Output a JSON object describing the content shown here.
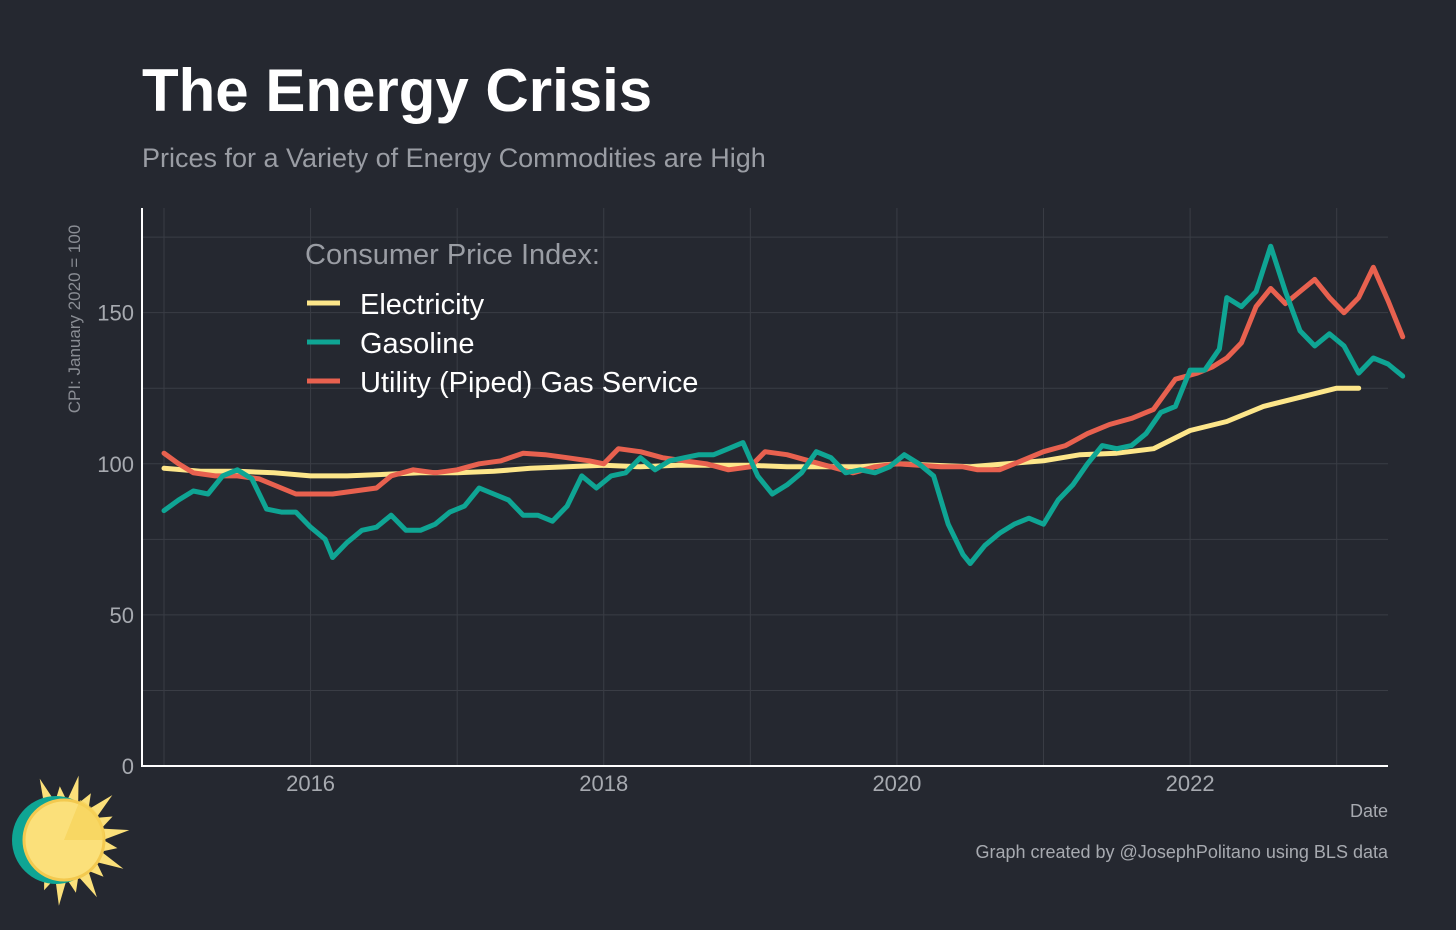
{
  "header": {
    "title": "The Energy Crisis",
    "subtitle": "Prices for a Variety of Energy Commodities are High"
  },
  "footer": {
    "caption": "Graph created by @JosephPolitano using BLS data"
  },
  "colors": {
    "background": "#252830",
    "grid": "#3a3d45",
    "axis": "#ffffff",
    "text_muted": "#9a9da4",
    "electricity": "#fde68a",
    "gasoline": "#0fa594",
    "utility_gas": "#e8614f",
    "sun": "#fbe07a"
  },
  "chart_data": {
    "type": "line",
    "xlabel": "Date",
    "ylabel": "CPI: January 2020 = 100",
    "xlim": [
      2014.85,
      2023.35
    ],
    "ylim": [
      0,
      180
    ],
    "x_ticks": [
      2016,
      2018,
      2020,
      2022
    ],
    "x_tick_labels": [
      "2016",
      "2018",
      "2020",
      "2022"
    ],
    "y_ticks": [
      0,
      50,
      100,
      150
    ],
    "y_tick_labels": [
      "0",
      "50",
      "100",
      "150"
    ],
    "grid": true,
    "legend_title": "Consumer Price Index:",
    "legend_position": "top-left",
    "series": [
      {
        "name": "Electricity",
        "color": "#fde68a",
        "points": [
          [
            2015.0,
            98.5
          ],
          [
            2015.25,
            97.5
          ],
          [
            2015.5,
            97.5
          ],
          [
            2015.75,
            97
          ],
          [
            2016.0,
            96
          ],
          [
            2016.25,
            96
          ],
          [
            2016.5,
            96.5
          ],
          [
            2016.75,
            97
          ],
          [
            2017.0,
            97
          ],
          [
            2017.25,
            97.5
          ],
          [
            2017.5,
            98.5
          ],
          [
            2017.75,
            99
          ],
          [
            2018.0,
            99.5
          ],
          [
            2018.25,
            99
          ],
          [
            2018.5,
            99.5
          ],
          [
            2018.75,
            99.5
          ],
          [
            2019.0,
            99.5
          ],
          [
            2019.25,
            99
          ],
          [
            2019.5,
            99
          ],
          [
            2019.75,
            99
          ],
          [
            2020.0,
            100
          ],
          [
            2020.25,
            99.5
          ],
          [
            2020.5,
            99
          ],
          [
            2020.75,
            100
          ],
          [
            2021.0,
            101
          ],
          [
            2021.25,
            103
          ],
          [
            2021.5,
            103.5
          ],
          [
            2021.75,
            105
          ],
          [
            2022.0,
            111
          ],
          [
            2022.25,
            114
          ],
          [
            2022.5,
            119
          ],
          [
            2022.75,
            122
          ],
          [
            2023.0,
            125
          ],
          [
            2023.15,
            125
          ]
        ]
      },
      {
        "name": "Gasoline",
        "color": "#0fa594",
        "points": [
          [
            2015.0,
            84.5
          ],
          [
            2015.1,
            88
          ],
          [
            2015.2,
            91
          ],
          [
            2015.3,
            90
          ],
          [
            2015.4,
            96
          ],
          [
            2015.5,
            98
          ],
          [
            2015.6,
            95
          ],
          [
            2015.7,
            85
          ],
          [
            2015.8,
            84
          ],
          [
            2015.9,
            84
          ],
          [
            2016.0,
            79
          ],
          [
            2016.1,
            75
          ],
          [
            2016.15,
            69
          ],
          [
            2016.25,
            74
          ],
          [
            2016.35,
            78
          ],
          [
            2016.45,
            79
          ],
          [
            2016.55,
            83
          ],
          [
            2016.65,
            78
          ],
          [
            2016.75,
            78
          ],
          [
            2016.85,
            80
          ],
          [
            2016.95,
            84
          ],
          [
            2017.05,
            86
          ],
          [
            2017.15,
            92
          ],
          [
            2017.25,
            90
          ],
          [
            2017.35,
            88
          ],
          [
            2017.45,
            83
          ],
          [
            2017.55,
            83
          ],
          [
            2017.65,
            81
          ],
          [
            2017.75,
            86
          ],
          [
            2017.85,
            96
          ],
          [
            2017.95,
            92
          ],
          [
            2018.05,
            96
          ],
          [
            2018.15,
            97
          ],
          [
            2018.25,
            102
          ],
          [
            2018.35,
            98
          ],
          [
            2018.45,
            101
          ],
          [
            2018.55,
            102
          ],
          [
            2018.65,
            103
          ],
          [
            2018.75,
            103
          ],
          [
            2018.85,
            105
          ],
          [
            2018.95,
            107
          ],
          [
            2019.05,
            96
          ],
          [
            2019.15,
            90
          ],
          [
            2019.25,
            93
          ],
          [
            2019.35,
            97
          ],
          [
            2019.45,
            104
          ],
          [
            2019.55,
            102
          ],
          [
            2019.65,
            97
          ],
          [
            2019.75,
            98
          ],
          [
            2019.85,
            97
          ],
          [
            2019.95,
            99
          ],
          [
            2020.05,
            103
          ],
          [
            2020.15,
            100
          ],
          [
            2020.25,
            96
          ],
          [
            2020.35,
            80
          ],
          [
            2020.45,
            70
          ],
          [
            2020.5,
            67
          ],
          [
            2020.6,
            73
          ],
          [
            2020.7,
            77
          ],
          [
            2020.8,
            80
          ],
          [
            2020.9,
            82
          ],
          [
            2021.0,
            80
          ],
          [
            2021.1,
            88
          ],
          [
            2021.2,
            93
          ],
          [
            2021.3,
            100
          ],
          [
            2021.4,
            106
          ],
          [
            2021.5,
            105
          ],
          [
            2021.6,
            106
          ],
          [
            2021.7,
            110
          ],
          [
            2021.8,
            117
          ],
          [
            2021.9,
            119
          ],
          [
            2022.0,
            131
          ],
          [
            2022.1,
            131
          ],
          [
            2022.2,
            138
          ],
          [
            2022.25,
            155
          ],
          [
            2022.35,
            152
          ],
          [
            2022.45,
            157
          ],
          [
            2022.55,
            172
          ],
          [
            2022.65,
            157
          ],
          [
            2022.75,
            144
          ],
          [
            2022.85,
            139
          ],
          [
            2022.95,
            143
          ],
          [
            2023.05,
            139
          ],
          [
            2023.15,
            130
          ],
          [
            2023.25,
            135
          ],
          [
            2023.35,
            133
          ],
          [
            2023.45,
            129
          ]
        ]
      },
      {
        "name": "Utility (Piped) Gas Service",
        "color": "#e8614f",
        "points": [
          [
            2015.0,
            103.5
          ],
          [
            2015.1,
            100
          ],
          [
            2015.2,
            97
          ],
          [
            2015.35,
            96
          ],
          [
            2015.5,
            96
          ],
          [
            2015.65,
            95
          ],
          [
            2015.8,
            92
          ],
          [
            2015.9,
            90
          ],
          [
            2016.0,
            90
          ],
          [
            2016.15,
            90
          ],
          [
            2016.3,
            91
          ],
          [
            2016.45,
            92
          ],
          [
            2016.55,
            96
          ],
          [
            2016.7,
            98
          ],
          [
            2016.85,
            97
          ],
          [
            2017.0,
            98
          ],
          [
            2017.15,
            100
          ],
          [
            2017.3,
            101
          ],
          [
            2017.45,
            103.5
          ],
          [
            2017.6,
            103
          ],
          [
            2017.75,
            102
          ],
          [
            2017.9,
            101
          ],
          [
            2018.0,
            100
          ],
          [
            2018.1,
            105
          ],
          [
            2018.25,
            104
          ],
          [
            2018.4,
            102
          ],
          [
            2018.55,
            101
          ],
          [
            2018.7,
            100
          ],
          [
            2018.85,
            98
          ],
          [
            2019.0,
            99
          ],
          [
            2019.1,
            104
          ],
          [
            2019.25,
            103
          ],
          [
            2019.4,
            101
          ],
          [
            2019.55,
            99
          ],
          [
            2019.7,
            97
          ],
          [
            2019.85,
            99
          ],
          [
            2020.0,
            100
          ],
          [
            2020.15,
            99.5
          ],
          [
            2020.3,
            99
          ],
          [
            2020.45,
            99
          ],
          [
            2020.55,
            98
          ],
          [
            2020.7,
            98
          ],
          [
            2020.85,
            101
          ],
          [
            2021.0,
            104
          ],
          [
            2021.15,
            106
          ],
          [
            2021.3,
            110
          ],
          [
            2021.45,
            113
          ],
          [
            2021.6,
            115
          ],
          [
            2021.75,
            118
          ],
          [
            2021.9,
            128
          ],
          [
            2022.05,
            130
          ],
          [
            2022.15,
            132
          ],
          [
            2022.25,
            135
          ],
          [
            2022.35,
            140
          ],
          [
            2022.45,
            152
          ],
          [
            2022.55,
            158
          ],
          [
            2022.65,
            153
          ],
          [
            2022.75,
            157
          ],
          [
            2022.85,
            161
          ],
          [
            2022.95,
            155
          ],
          [
            2023.05,
            150
          ],
          [
            2023.15,
            155
          ],
          [
            2023.25,
            165
          ],
          [
            2023.35,
            154
          ],
          [
            2023.45,
            142
          ]
        ]
      }
    ]
  }
}
